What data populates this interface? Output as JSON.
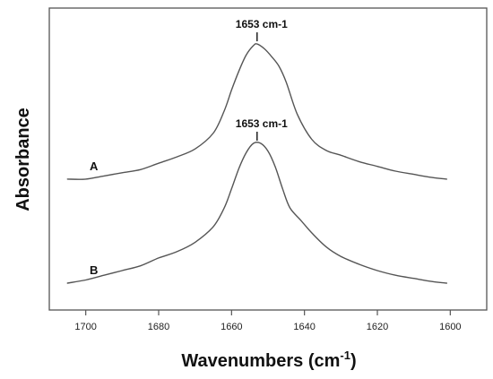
{
  "chart_data": {
    "type": "line",
    "title": "",
    "xlabel": "Wavenumbers (cm",
    "xlabel_sup": "-1",
    "xlabel_close": ")",
    "ylabel": "Absorbance",
    "xlim": [
      1710,
      1590
    ],
    "x_reversed": true,
    "ticks": [
      1700,
      1680,
      1660,
      1640,
      1620,
      1600
    ],
    "tick_labels": [
      "1700",
      "1680",
      "1660",
      "1640",
      "1620",
      "1600"
    ],
    "y_tick_labels": false,
    "grid": false,
    "legend": "none",
    "line_color": "#555555",
    "series": [
      {
        "name": "A",
        "label": "A",
        "peak_label": "1653 cm-1",
        "x": [
          1705,
          1700,
          1695,
          1690,
          1685,
          1680,
          1675,
          1670,
          1665,
          1662,
          1660,
          1658,
          1656,
          1654,
          1653,
          1651,
          1649,
          1647,
          1645,
          1642,
          1638,
          1634,
          1630,
          1625,
          1620,
          1615,
          1610,
          1605,
          1601
        ],
        "y": [
          0.04,
          0.04,
          0.06,
          0.08,
          0.1,
          0.14,
          0.18,
          0.23,
          0.33,
          0.47,
          0.6,
          0.72,
          0.82,
          0.88,
          0.89,
          0.86,
          0.81,
          0.75,
          0.65,
          0.45,
          0.29,
          0.22,
          0.19,
          0.15,
          0.12,
          0.09,
          0.07,
          0.05,
          0.04
        ]
      },
      {
        "name": "B",
        "label": "B",
        "peak_label": "1653 cm-1",
        "x": [
          1705,
          1700,
          1695,
          1690,
          1685,
          1680,
          1675,
          1670,
          1665,
          1662,
          1660,
          1658,
          1656,
          1654,
          1652,
          1650,
          1648,
          1646,
          1644,
          1641,
          1638,
          1634,
          1630,
          1625,
          1620,
          1615,
          1610,
          1605,
          1601
        ],
        "y": [
          0.04,
          0.06,
          0.09,
          0.12,
          0.15,
          0.2,
          0.24,
          0.3,
          0.4,
          0.52,
          0.64,
          0.77,
          0.87,
          0.93,
          0.93,
          0.88,
          0.78,
          0.64,
          0.52,
          0.44,
          0.36,
          0.27,
          0.21,
          0.16,
          0.12,
          0.09,
          0.07,
          0.05,
          0.04
        ]
      }
    ]
  }
}
